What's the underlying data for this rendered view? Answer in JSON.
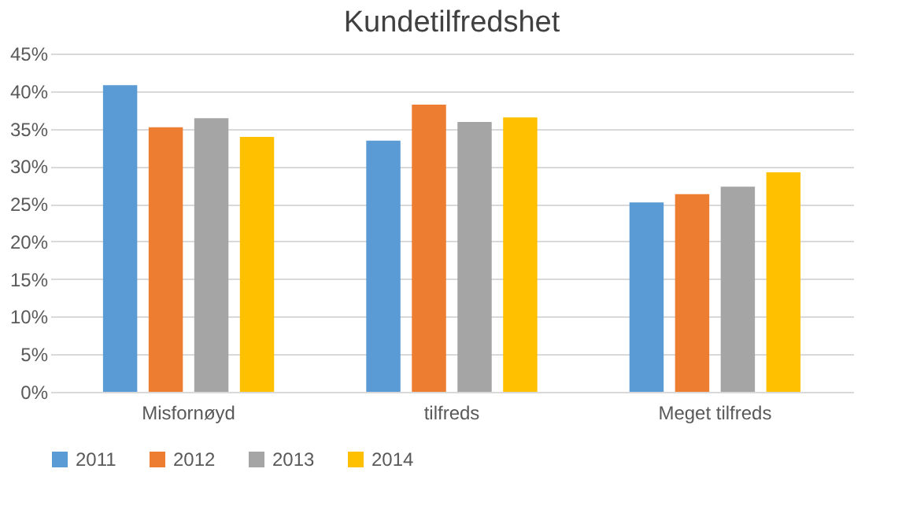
{
  "chart_data": {
    "type": "bar",
    "title": "Kundetilfredshet",
    "categories": [
      "Misfornøyd",
      "tilfreds",
      "Meget tilfreds"
    ],
    "series": [
      {
        "name": "2011",
        "color": "#5b9bd5",
        "values": [
          40.8,
          33.4,
          25.2
        ]
      },
      {
        "name": "2012",
        "color": "#ed7d31",
        "values": [
          35.2,
          38.2,
          26.3
        ]
      },
      {
        "name": "2013",
        "color": "#a5a5a5",
        "values": [
          36.4,
          35.9,
          27.3
        ]
      },
      {
        "name": "2014",
        "color": "#ffc000",
        "values": [
          33.9,
          36.5,
          29.2
        ]
      }
    ],
    "ylim": [
      0,
      45
    ],
    "yticks": [
      {
        "value": 0,
        "label": "0%"
      },
      {
        "value": 5,
        "label": "5%"
      },
      {
        "value": 10,
        "label": "10%"
      },
      {
        "value": 15,
        "label": "15%"
      },
      {
        "value": 20,
        "label": "20%"
      },
      {
        "value": 25,
        "label": "25%"
      },
      {
        "value": 30,
        "label": "30%"
      },
      {
        "value": 35,
        "label": "35%"
      },
      {
        "value": 40,
        "label": "40%"
      },
      {
        "value": 45,
        "label": "45%"
      }
    ],
    "grid": "y",
    "legend": "bottom"
  }
}
